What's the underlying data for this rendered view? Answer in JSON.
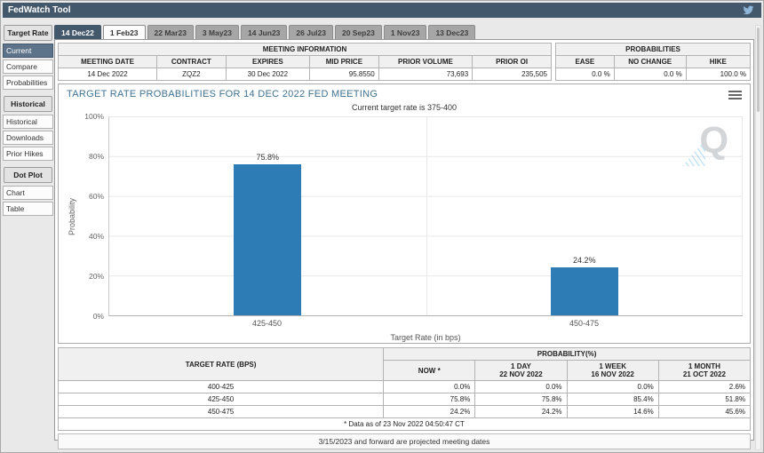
{
  "app": {
    "title": "FedWatch Tool"
  },
  "sidebar": {
    "sections": [
      {
        "header": "Target Rate",
        "items": [
          {
            "label": "Current"
          },
          {
            "label": "Compare"
          },
          {
            "label": "Probabilities"
          }
        ]
      },
      {
        "header": "Historical",
        "items": [
          {
            "label": "Historical"
          },
          {
            "label": "Downloads"
          },
          {
            "label": "Prior Hikes"
          }
        ]
      },
      {
        "header": "Dot Plot",
        "items": [
          {
            "label": "Chart"
          },
          {
            "label": "Table"
          }
        ]
      }
    ]
  },
  "tabs": [
    {
      "label": "14 Dec22"
    },
    {
      "label": "1 Feb23"
    },
    {
      "label": "22 Mar23"
    },
    {
      "label": "3 May23"
    },
    {
      "label": "14 Jun23"
    },
    {
      "label": "26 Jul23"
    },
    {
      "label": "20 Sep23"
    },
    {
      "label": "1 Nov23"
    },
    {
      "label": "13 Dec23"
    }
  ],
  "meeting_info": {
    "title": "MEETING INFORMATION",
    "headers": [
      "MEETING DATE",
      "CONTRACT",
      "EXPIRES",
      "MID PRICE",
      "PRIOR VOLUME",
      "PRIOR OI"
    ],
    "row": [
      "14 Dec 2022",
      "ZQZ2",
      "30 Dec 2022",
      "95.8550",
      "73,693",
      "235,505"
    ]
  },
  "prob_summary": {
    "title": "PROBABILITIES",
    "headers": [
      "EASE",
      "NO CHANGE",
      "HIKE"
    ],
    "row": [
      "0.0 %",
      "0.0 %",
      "100.0 %"
    ]
  },
  "chart_data": {
    "type": "bar",
    "title": "TARGET RATE PROBABILITIES FOR 14 DEC 2022 FED MEETING",
    "subtitle": "Current target rate is 375-400",
    "categories": [
      "425-450",
      "450-475"
    ],
    "values": [
      75.8,
      24.2
    ],
    "labels": [
      "75.8%",
      "24.2%"
    ],
    "xlabel": "Target Rate (in bps)",
    "ylabel": "Probability",
    "ylim": [
      0,
      100
    ],
    "yticks": [
      "100%",
      "80%",
      "60%",
      "40%",
      "20%",
      "0%"
    ],
    "grid": "on",
    "legend": "none",
    "bar_color": "#2d7cb5",
    "watermark": "Q"
  },
  "prob_table": {
    "col1_header": "TARGET RATE (BPS)",
    "group_header": "PROBABILITY(%)",
    "now_header": "NOW *",
    "cols": [
      {
        "line1": "1 DAY",
        "line2": "22 NOV 2022"
      },
      {
        "line1": "1 WEEK",
        "line2": "16 NOV 2022"
      },
      {
        "line1": "1 MONTH",
        "line2": "21 OCT 2022"
      }
    ],
    "rows": [
      {
        "range": "400-425",
        "now": "0.0%",
        "d1": "0.0%",
        "w1": "0.0%",
        "m1": "2.6%"
      },
      {
        "range": "425-450",
        "now": "75.8%",
        "d1": "75.8%",
        "w1": "85.4%",
        "m1": "51.8%"
      },
      {
        "range": "450-475",
        "now": "24.2%",
        "d1": "24.2%",
        "w1": "14.6%",
        "m1": "45.6%"
      }
    ],
    "footnote": "* Data as of 23 Nov 2022 04:50:47 CT"
  },
  "footer": "3/15/2023 and forward are projected meeting dates",
  "colors": {
    "header_bg": "#44586c",
    "bar": "#2d7cb5",
    "now_highlight": "#f8f6d4",
    "chart_title": "#3f7191"
  }
}
